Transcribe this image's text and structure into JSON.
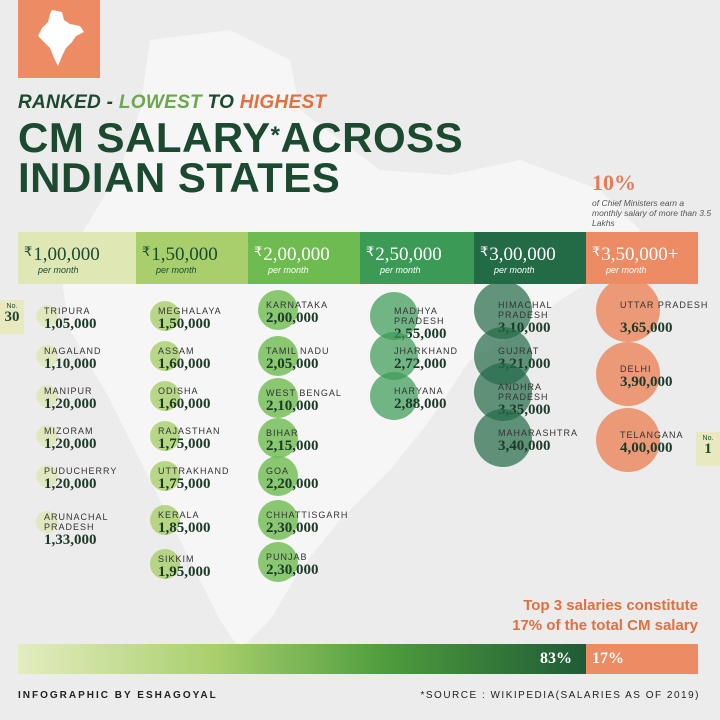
{
  "header": {
    "ranked_word": "RANKED",
    "dash": " - ",
    "lowest_word": "LOWEST",
    "to_word": " TO ",
    "highest_word": "HIGHEST",
    "title_line1_a": "CM SALARY",
    "title_star": "*",
    "title_line1_b": "ACROSS",
    "title_line2": "INDIAN STATES"
  },
  "stat": {
    "percent": "10%",
    "note": "of Chief Ministers earn a monthly salary of more than 3.5 Lakhs"
  },
  "bands": [
    {
      "amount": "1,00,000",
      "per": "per month"
    },
    {
      "amount": "1,50,000",
      "per": "per month"
    },
    {
      "amount": "2,00,000",
      "per": "per month"
    },
    {
      "amount": "2,50,000",
      "per": "per month"
    },
    {
      "amount": "3,00,000",
      "per": "per month"
    },
    {
      "amount": "3,50,000+",
      "per": "per month"
    }
  ],
  "rupee_symbol": "₹",
  "rank_low": {
    "prefix": "No.",
    "number": "30"
  },
  "rank_high": {
    "prefix": "No.",
    "number": "1"
  },
  "chart_data": {
    "type": "table",
    "title": "CM SALARY ACROSS INDIAN STATES",
    "subtitle": "RANKED - LOWEST TO HIGHEST",
    "unit": "₹ per month",
    "states": [
      {
        "name": "TRIPURA",
        "value": "1,05,000",
        "salary": 105000,
        "band": 0
      },
      {
        "name": "NAGALAND",
        "value": "1,10,000",
        "salary": 110000,
        "band": 0
      },
      {
        "name": "MANIPUR",
        "value": "1,20,000",
        "salary": 120000,
        "band": 0
      },
      {
        "name": "MIZORAM",
        "value": "1,20,000",
        "salary": 120000,
        "band": 0
      },
      {
        "name": "PUDUCHERRY",
        "value": "1,20,000",
        "salary": 120000,
        "band": 0
      },
      {
        "name": "ARUNACHAL PRADESH",
        "value": "1,33,000",
        "salary": 133000,
        "band": 0
      },
      {
        "name": "MEGHALAYA",
        "value": "1,50,000",
        "salary": 150000,
        "band": 1
      },
      {
        "name": "ASSAM",
        "value": "1,60,000",
        "salary": 160000,
        "band": 1
      },
      {
        "name": "ODISHA",
        "value": "1,60,000",
        "salary": 160000,
        "band": 1
      },
      {
        "name": "RAJASTHAN",
        "value": "1,75,000",
        "salary": 175000,
        "band": 1
      },
      {
        "name": "UTTRAKHAND",
        "value": "1,75,000",
        "salary": 175000,
        "band": 1
      },
      {
        "name": "KERALA",
        "value": "1,85,000",
        "salary": 185000,
        "band": 1
      },
      {
        "name": "SIKKIM",
        "value": "1,95,000",
        "salary": 195000,
        "band": 1
      },
      {
        "name": "KARNATAKA",
        "value": "2,00,000",
        "salary": 200000,
        "band": 2
      },
      {
        "name": "TAMIL NADU",
        "value": "2,05,000",
        "salary": 205000,
        "band": 2
      },
      {
        "name": "WEST BENGAL",
        "value": "2,10,000",
        "salary": 210000,
        "band": 2
      },
      {
        "name": "BIHAR",
        "value": "2,15,000",
        "salary": 215000,
        "band": 2
      },
      {
        "name": "GOA",
        "value": "2,20,000",
        "salary": 220000,
        "band": 2
      },
      {
        "name": "CHHATTISGARH",
        "value": "2,30,000",
        "salary": 230000,
        "band": 2
      },
      {
        "name": "PUNJAB",
        "value": "2,30,000",
        "salary": 230000,
        "band": 2
      },
      {
        "name": "MADHYA PRADESH",
        "value": "2,55,000",
        "salary": 255000,
        "band": 3
      },
      {
        "name": "JHARKHAND",
        "value": "2,72,000",
        "salary": 272000,
        "band": 3
      },
      {
        "name": "HARYANA",
        "value": "2,88,000",
        "salary": 288000,
        "band": 3
      },
      {
        "name": "HIMACHAL PRADESH",
        "value": "3,10,000",
        "salary": 310000,
        "band": 4
      },
      {
        "name": "GUJRAT",
        "value": "3,21,000",
        "salary": 321000,
        "band": 4
      },
      {
        "name": "ANDHRA PRADESH",
        "value": "3,35,000",
        "salary": 335000,
        "band": 4
      },
      {
        "name": "MAHARASHTRA",
        "value": "3,40,000",
        "salary": 340000,
        "band": 4
      },
      {
        "name": "UTTAR PRADESH",
        "value": "3,65,000",
        "salary": 365000,
        "band": 5
      },
      {
        "name": "DELHI",
        "value": "3,90,000",
        "salary": 390000,
        "band": 5
      },
      {
        "name": "TELANGANA",
        "value": "4,00,000",
        "salary": 400000,
        "band": 5
      }
    ],
    "share": [
      {
        "label": "83%",
        "percent": 83
      },
      {
        "label": "17%",
        "percent": 17
      }
    ]
  },
  "colors": {
    "bands": [
      "#dfe7b4",
      "#a8cf6c",
      "#6ebc50",
      "#3b9a55",
      "#236b47",
      "#ec8b64"
    ],
    "band_text": [
      "#1b4a31",
      "#1b4a31",
      "#ffffff",
      "#ffffff",
      "#ffffff",
      "#ffffff"
    ]
  },
  "summary": {
    "line1": "Top 3 salaries constitute",
    "line2": "17% of the total CM salary"
  },
  "footer": {
    "credit": "INFOGRAPHIC BY ESHAGOYAL",
    "source": "*SOURCE : WIKIPEDIA(SALARIES AS OF 2019)"
  }
}
